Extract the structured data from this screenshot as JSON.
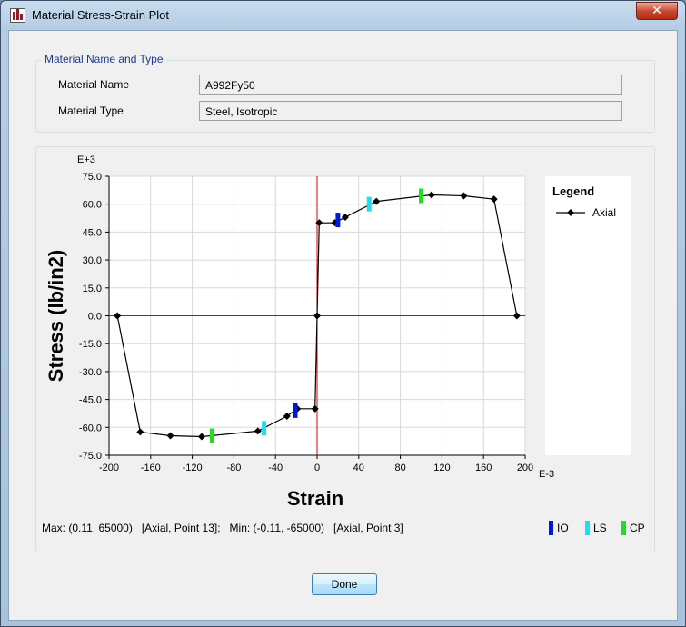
{
  "window": {
    "title": "Material Stress-Strain Plot",
    "close_glyph": "✕"
  },
  "material_group": {
    "title": "Material Name and Type",
    "name_label": "Material Name",
    "name_value": "A992Fy50",
    "type_label": "Material Type",
    "type_value": "Steel, Isotropic"
  },
  "chart_data": {
    "type": "line",
    "xlabel": "Strain",
    "ylabel": "Stress (lb/in2)",
    "x_multiplier": "E-3",
    "y_multiplier": "E+3",
    "xlim": [
      -200,
      200
    ],
    "ylim": [
      -75,
      75
    ],
    "x_ticks": [
      -200,
      -160,
      -120,
      -80,
      -40,
      0,
      40,
      80,
      120,
      160,
      200
    ],
    "x_tick_labels": [
      "-200",
      "-160",
      "-120",
      "-80",
      "-40",
      "0",
      "40",
      "80",
      "120",
      "160",
      "200"
    ],
    "y_ticks": [
      75,
      60,
      45,
      30,
      15,
      0,
      -15,
      -30,
      -45,
      -60,
      -75
    ],
    "y_tick_labels": [
      "75.0",
      "60.0",
      "45.0",
      "30.0",
      "15.0",
      "0.0",
      "-15.0",
      "-30.0",
      "-45.0",
      "-60.0",
      "-75.0"
    ],
    "grid": true,
    "legend_title": "Legend",
    "legend_position": "right",
    "series": [
      {
        "name": "Axial",
        "color": "#000000",
        "marker": "diamond",
        "points": [
          [
            -192,
            0
          ],
          [
            -170,
            -62.5
          ],
          [
            -141,
            -64.5
          ],
          [
            -111,
            -65
          ],
          [
            -57,
            -62
          ],
          [
            -29,
            -54
          ],
          [
            -19,
            -50
          ],
          [
            -2,
            -50
          ],
          [
            0,
            0
          ],
          [
            2,
            50
          ],
          [
            17,
            50
          ],
          [
            27,
            53
          ],
          [
            57,
            61.5
          ],
          [
            110,
            65
          ],
          [
            141,
            64.5
          ],
          [
            170,
            62.7
          ],
          [
            192,
            0
          ]
        ]
      }
    ],
    "markers": [
      {
        "name": "IO",
        "color": "#0018d8",
        "points": [
          [
            -21,
            -51
          ],
          [
            20,
            51.5
          ]
        ]
      },
      {
        "name": "LS",
        "color": "#22dcf0",
        "points": [
          [
            -51,
            -60.5
          ],
          [
            50,
            60
          ]
        ]
      },
      {
        "name": "CP",
        "color": "#22dc22",
        "points": [
          [
            -101,
            -64.5
          ],
          [
            100,
            64.5
          ]
        ]
      }
    ],
    "axis_line_color": "#dd0000"
  },
  "status_bar": {
    "max_label": "Max: (0.11, 65000)   [Axial, Point 13];   Min: (-0.11, -65000)   [Axial, Point 3]"
  },
  "done_button": "Done"
}
